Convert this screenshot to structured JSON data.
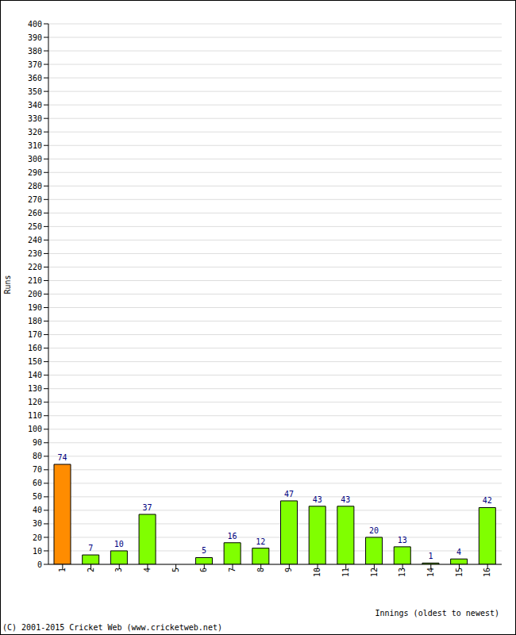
{
  "chart_data": {
    "type": "bar",
    "x_label": "Innings (oldest to newest)",
    "y_label": "Runs",
    "categories": [
      "1",
      "2",
      "3",
      "4",
      "5",
      "6",
      "7",
      "8",
      "9",
      "10",
      "11",
      "12",
      "13",
      "14",
      "15",
      "16"
    ],
    "values": [
      74,
      7,
      10,
      37,
      0,
      5,
      16,
      12,
      47,
      43,
      43,
      20,
      13,
      1,
      4,
      42
    ],
    "colors": [
      "#ff8c00",
      "#80ff00",
      "#80ff00",
      "#80ff00",
      "#80ff00",
      "#80ff00",
      "#80ff00",
      "#80ff00",
      "#80ff00",
      "#80ff00",
      "#80ff00",
      "#80ff00",
      "#80ff00",
      "#80ff00",
      "#80ff00",
      "#80ff00"
    ],
    "ylim": [
      0,
      400
    ],
    "yticks": [
      0,
      10,
      20,
      30,
      40,
      50,
      60,
      70,
      80,
      90,
      100,
      110,
      120,
      130,
      140,
      150,
      160,
      170,
      180,
      190,
      200,
      210,
      220,
      230,
      240,
      250,
      260,
      270,
      280,
      290,
      300,
      310,
      320,
      330,
      340,
      350,
      360,
      370,
      380,
      390,
      400
    ],
    "grid": true,
    "data_labels": true,
    "annotations": [
      "(C) 2001-2015 Cricket Web (www.cricketweb.net)"
    ]
  }
}
